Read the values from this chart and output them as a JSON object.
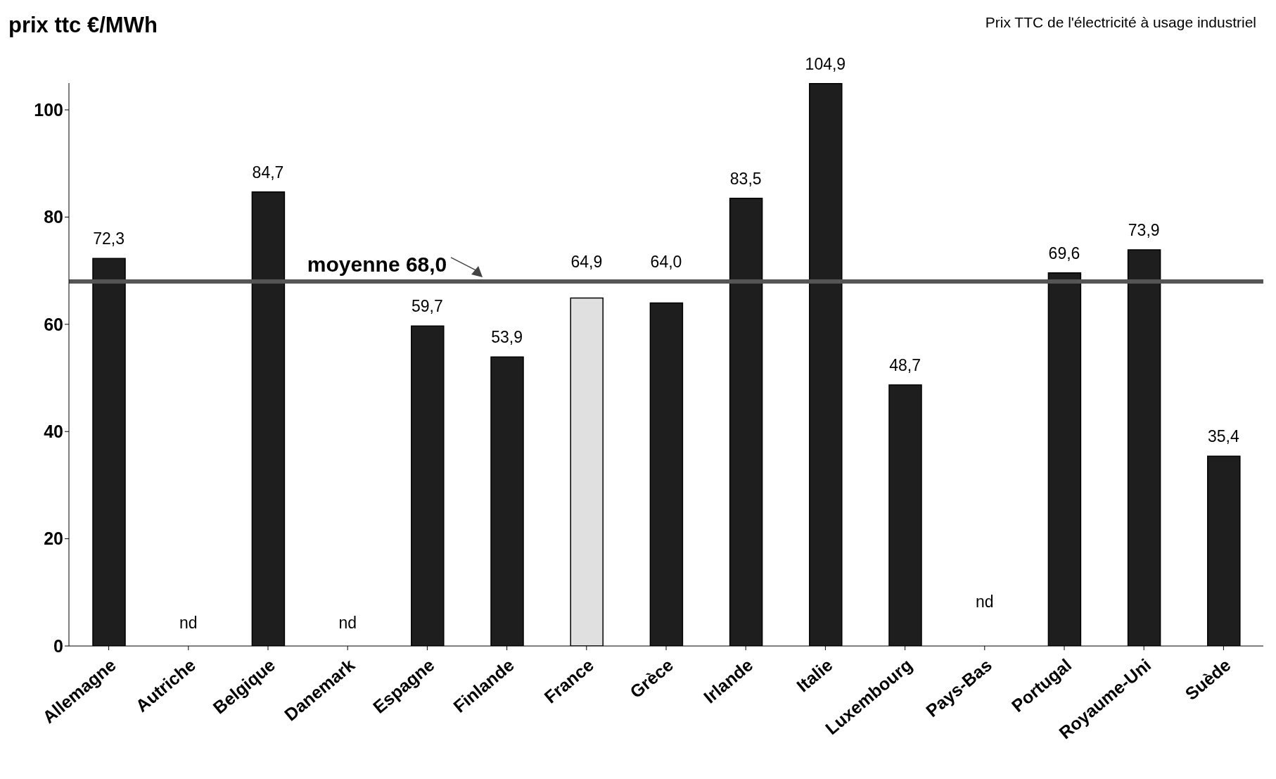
{
  "chart_data": {
    "type": "bar",
    "title": "Prix TTC de l'électricité à usage industriel",
    "ylabel": "prix ttc  €/MWh",
    "categories": [
      "Allemagne",
      "Autriche",
      "Belgique",
      "Danemark",
      "Espagne",
      "Finlande",
      "France",
      "Grèce",
      "Irlande",
      "Italie",
      "Luxembourg",
      "Pays-Bas",
      "Portugal",
      "Royaume-Uni",
      "Suède"
    ],
    "values": [
      72.3,
      null,
      84.7,
      null,
      59.7,
      53.9,
      64.9,
      64.0,
      83.5,
      104.9,
      48.7,
      null,
      69.6,
      73.9,
      35.4
    ],
    "value_labels": [
      "72,3",
      "nd",
      "84,7",
      "nd",
      "59,7",
      "53,9",
      "64,9",
      "64,0",
      "83,5",
      "104,9",
      "48,7",
      "nd",
      "69,6",
      "73,9",
      "35,4"
    ],
    "colors": [
      "#1e1e1e",
      "#1e1e1e",
      "#1e1e1e",
      "#1e1e1e",
      "#1e1e1e",
      "#1e1e1e",
      "#e0e0e0",
      "#1e1e1e",
      "#1e1e1e",
      "#1e1e1e",
      "#1e1e1e",
      "#1e1e1e",
      "#1e1e1e",
      "#1e1e1e",
      "#1e1e1e"
    ],
    "ylim": [
      0,
      105
    ],
    "yticks": [
      0,
      20,
      40,
      60,
      80,
      100
    ],
    "ref_lines": [
      {
        "axis": "y",
        "value": 68.0,
        "label": "moyenne 68,0",
        "color": "#555555"
      }
    ]
  }
}
